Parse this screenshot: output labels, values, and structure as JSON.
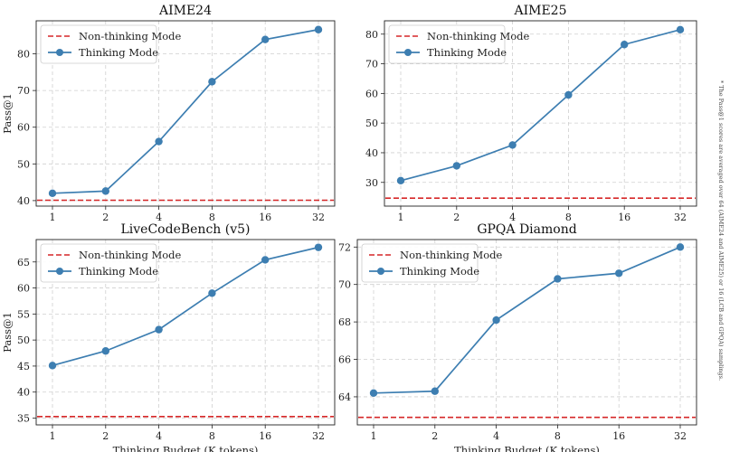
{
  "footnote": "* The Pass@1 scores are averaged over 64 (AIME24 and AIME25) or 16 (LCB and GPQA) samplings.",
  "colors": {
    "thinking": "#3d7eb1",
    "nonthinking": "#d62728",
    "grid": "#cfcfcf"
  },
  "chart_data": [
    {
      "type": "line",
      "title": "AIME24",
      "xlabel": "",
      "ylabel": "Pass@1",
      "categories": [
        "1",
        "2",
        "4",
        "8",
        "16",
        "32"
      ],
      "yticks": [
        40,
        50,
        60,
        70,
        80
      ],
      "ylim": [
        38.5,
        89
      ],
      "series": [
        {
          "name": "Non-thinking Mode",
          "style": "dashed-hline",
          "values": [
            40.1,
            40.1,
            40.1,
            40.1,
            40.1,
            40.1
          ]
        },
        {
          "name": "Thinking Mode",
          "style": "line-marker",
          "values": [
            42.0,
            42.6,
            56.1,
            72.4,
            83.9,
            86.6
          ]
        }
      ],
      "legend": "upper-left",
      "grid": true
    },
    {
      "type": "line",
      "title": "AIME25",
      "xlabel": "",
      "ylabel": "",
      "categories": [
        "1",
        "2",
        "4",
        "8",
        "16",
        "32"
      ],
      "yticks": [
        30,
        40,
        50,
        60,
        70,
        80
      ],
      "ylim": [
        22,
        84.5
      ],
      "series": [
        {
          "name": "Non-thinking Mode",
          "style": "dashed-hline",
          "values": [
            24.7,
            24.7,
            24.7,
            24.7,
            24.7,
            24.7
          ]
        },
        {
          "name": "Thinking Mode",
          "style": "line-marker",
          "values": [
            30.6,
            35.6,
            42.6,
            59.5,
            76.5,
            81.5
          ]
        }
      ],
      "legend": "upper-left",
      "grid": true
    },
    {
      "type": "line",
      "title": "LiveCodeBench (v5)",
      "xlabel": "Thinking Budget (K tokens)",
      "ylabel": "Pass@1",
      "categories": [
        "1",
        "2",
        "4",
        "8",
        "16",
        "32"
      ],
      "yticks": [
        35,
        40,
        45,
        50,
        55,
        60,
        65
      ],
      "ylim": [
        33.7,
        69.3
      ],
      "series": [
        {
          "name": "Non-thinking Mode",
          "style": "dashed-hline",
          "values": [
            35.3,
            35.3,
            35.3,
            35.3,
            35.3,
            35.3
          ]
        },
        {
          "name": "Thinking Mode",
          "style": "line-marker",
          "values": [
            45.1,
            47.9,
            52.0,
            59.0,
            65.4,
            67.8
          ]
        }
      ],
      "legend": "upper-left",
      "grid": true
    },
    {
      "type": "line",
      "title": "GPQA Diamond",
      "xlabel": "Thinking Budget (K tokens)",
      "ylabel": "",
      "categories": [
        "1",
        "2",
        "4",
        "8",
        "16",
        "32"
      ],
      "yticks": [
        64,
        66,
        68,
        70,
        72
      ],
      "ylim": [
        62.5,
        72.4
      ],
      "series": [
        {
          "name": "Non-thinking Mode",
          "style": "dashed-hline",
          "values": [
            62.9,
            62.9,
            62.9,
            62.9,
            62.9,
            62.9
          ]
        },
        {
          "name": "Thinking Mode",
          "style": "line-marker",
          "values": [
            64.2,
            64.3,
            68.1,
            70.3,
            70.6,
            72.0
          ]
        }
      ],
      "legend": "upper-left",
      "grid": true
    }
  ]
}
